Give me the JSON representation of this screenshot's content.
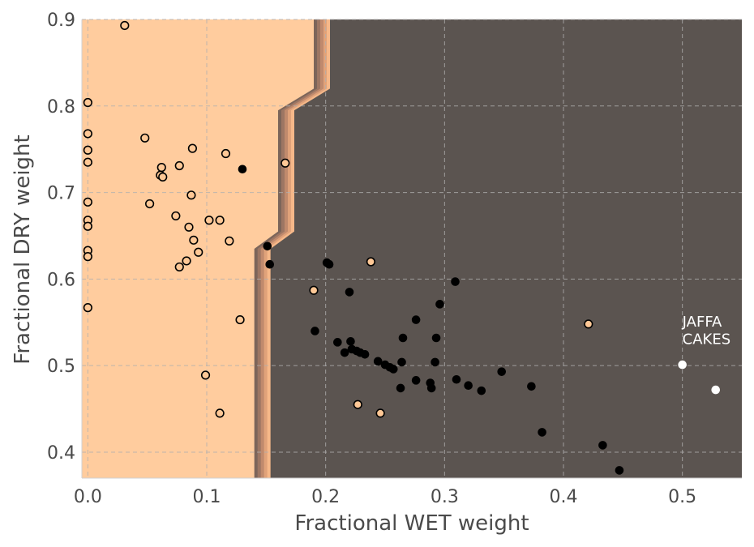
{
  "chart_data": {
    "type": "scatter",
    "title": "",
    "xlabel": "Fractional WET weight",
    "ylabel": "Fractional DRY weight",
    "xlim": [
      -0.005,
      0.55
    ],
    "ylim": [
      0.37,
      0.9
    ],
    "xticks": [
      "0.0",
      "0.1",
      "0.2",
      "0.3",
      "0.4",
      "0.5"
    ],
    "yticks": [
      "0.4",
      "0.5",
      "0.6",
      "0.7",
      "0.8",
      "0.9"
    ],
    "grid": true,
    "colors": {
      "class_a_region": "#ffcc9e",
      "class_b_region": "#5b5450",
      "class_a_marker": "#ffc896",
      "class_b_marker": "#000000",
      "highlight_marker": "#ffffff",
      "boundary_bands": [
        "#f6b889",
        "#e0a27a",
        "#c08a6d",
        "#9d7663",
        "#7c655a"
      ]
    },
    "decision_boundary": [
      [
        0.14,
        0.37
      ],
      [
        0.14,
        0.635
      ],
      [
        0.16,
        0.655
      ],
      [
        0.16,
        0.795
      ],
      [
        0.19,
        0.82
      ],
      [
        0.19,
        0.9
      ]
    ],
    "series": [
      {
        "points": [
          [
            0.031,
            0.893
          ],
          [
            0.0,
            0.804
          ],
          [
            0.0,
            0.768
          ],
          [
            0.0,
            0.749
          ],
          [
            0.0,
            0.735
          ],
          [
            0.0,
            0.689
          ],
          [
            0.0,
            0.668
          ],
          [
            0.0,
            0.661
          ],
          [
            0.0,
            0.633
          ],
          [
            0.0,
            0.626
          ],
          [
            0.0,
            0.567
          ],
          [
            0.048,
            0.763
          ],
          [
            0.088,
            0.751
          ],
          [
            0.116,
            0.745
          ],
          [
            0.077,
            0.731
          ],
          [
            0.166,
            0.734
          ],
          [
            0.062,
            0.729
          ],
          [
            0.061,
            0.72
          ],
          [
            0.063,
            0.718
          ],
          [
            0.087,
            0.697
          ],
          [
            0.052,
            0.687
          ],
          [
            0.074,
            0.673
          ],
          [
            0.102,
            0.668
          ],
          [
            0.111,
            0.668
          ],
          [
            0.085,
            0.66
          ],
          [
            0.089,
            0.645
          ],
          [
            0.119,
            0.644
          ],
          [
            0.093,
            0.631
          ],
          [
            0.083,
            0.621
          ],
          [
            0.077,
            0.614
          ],
          [
            0.128,
            0.553
          ],
          [
            0.099,
            0.489
          ],
          [
            0.111,
            0.445
          ],
          [
            0.238,
            0.62
          ],
          [
            0.19,
            0.587
          ],
          [
            0.421,
            0.548
          ],
          [
            0.227,
            0.455
          ],
          [
            0.246,
            0.445
          ]
        ]
      },
      {
        "points": [
          [
            0.13,
            0.727
          ],
          [
            0.151,
            0.638
          ],
          [
            0.153,
            0.617
          ],
          [
            0.201,
            0.619
          ],
          [
            0.203,
            0.617
          ],
          [
            0.309,
            0.597
          ],
          [
            0.22,
            0.585
          ],
          [
            0.296,
            0.571
          ],
          [
            0.276,
            0.553
          ],
          [
            0.191,
            0.54
          ],
          [
            0.265,
            0.532
          ],
          [
            0.293,
            0.532
          ],
          [
            0.221,
            0.528
          ],
          [
            0.21,
            0.527
          ],
          [
            0.222,
            0.519
          ],
          [
            0.226,
            0.517
          ],
          [
            0.216,
            0.515
          ],
          [
            0.229,
            0.515
          ],
          [
            0.233,
            0.513
          ],
          [
            0.244,
            0.505
          ],
          [
            0.264,
            0.504
          ],
          [
            0.292,
            0.504
          ],
          [
            0.25,
            0.501
          ],
          [
            0.254,
            0.498
          ],
          [
            0.257,
            0.496
          ],
          [
            0.348,
            0.493
          ],
          [
            0.31,
            0.484
          ],
          [
            0.276,
            0.483
          ],
          [
            0.288,
            0.48
          ],
          [
            0.32,
            0.477
          ],
          [
            0.373,
            0.476
          ],
          [
            0.263,
            0.474
          ],
          [
            0.289,
            0.474
          ],
          [
            0.331,
            0.471
          ],
          [
            0.382,
            0.423
          ],
          [
            0.433,
            0.408
          ],
          [
            0.447,
            0.379
          ]
        ]
      },
      {
        "points": [
          [
            0.5,
            0.501
          ],
          [
            0.528,
            0.472
          ]
        ]
      }
    ],
    "annotations": [
      {
        "text": "JAFFA\nCAKES",
        "x": 0.5,
        "y": 0.545
      }
    ]
  }
}
